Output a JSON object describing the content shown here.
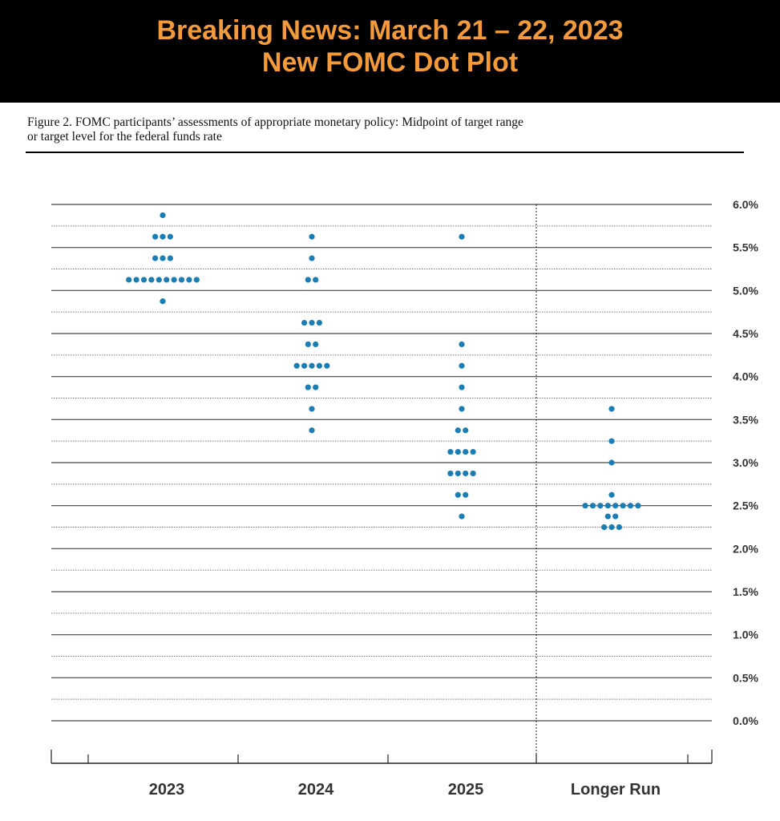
{
  "banner": {
    "line1": "Breaking News: March 21 – 22, 2023",
    "line2": "New FOMC Dot Plot"
  },
  "caption": {
    "line1": "Figure 2.  FOMC participants’ assessments of appropriate monetary policy: Midpoint of target range",
    "line2": "or target level for the federal funds rate"
  },
  "colors": {
    "banner_text": "#f39a3a",
    "dot": "#1a7db3"
  },
  "chart_data": {
    "type": "scatter",
    "x_categories": [
      "2023",
      "2024",
      "2025",
      "Longer Run"
    ],
    "ylim": [
      0,
      6
    ],
    "y_ticks": [
      "0.0%",
      "0.5%",
      "1.0%",
      "1.5%",
      "2.0%",
      "2.5%",
      "3.0%",
      "3.5%",
      "4.0%",
      "4.5%",
      "5.0%",
      "5.5%",
      "6.0%"
    ],
    "grid": "dotted at every 0.25, solid at every 0.5",
    "series": [
      {
        "category": "2023",
        "dots": [
          {
            "y": 5.875,
            "count": 1
          },
          {
            "y": 5.625,
            "count": 3
          },
          {
            "y": 5.375,
            "count": 3
          },
          {
            "y": 5.125,
            "count": 10
          },
          {
            "y": 4.875,
            "count": 1
          }
        ]
      },
      {
        "category": "2024",
        "dots": [
          {
            "y": 5.625,
            "count": 1
          },
          {
            "y": 5.375,
            "count": 1
          },
          {
            "y": 5.125,
            "count": 2
          },
          {
            "y": 4.625,
            "count": 3
          },
          {
            "y": 4.375,
            "count": 2
          },
          {
            "y": 4.125,
            "count": 5
          },
          {
            "y": 3.875,
            "count": 2
          },
          {
            "y": 3.625,
            "count": 1
          },
          {
            "y": 3.375,
            "count": 1
          }
        ]
      },
      {
        "category": "2025",
        "dots": [
          {
            "y": 5.625,
            "count": 1
          },
          {
            "y": 4.375,
            "count": 1
          },
          {
            "y": 4.125,
            "count": 1
          },
          {
            "y": 3.875,
            "count": 1
          },
          {
            "y": 3.625,
            "count": 1
          },
          {
            "y": 3.375,
            "count": 2
          },
          {
            "y": 3.125,
            "count": 4
          },
          {
            "y": 2.875,
            "count": 4
          },
          {
            "y": 2.625,
            "count": 2
          },
          {
            "y": 2.375,
            "count": 1
          }
        ]
      },
      {
        "category": "Longer Run",
        "dots": [
          {
            "y": 3.625,
            "count": 1
          },
          {
            "y": 3.25,
            "count": 1
          },
          {
            "y": 3.0,
            "count": 1
          },
          {
            "y": 2.625,
            "count": 1
          },
          {
            "y": 2.5,
            "count": 8
          },
          {
            "y": 2.375,
            "count": 2
          },
          {
            "y": 2.25,
            "count": 3
          }
        ]
      }
    ]
  }
}
